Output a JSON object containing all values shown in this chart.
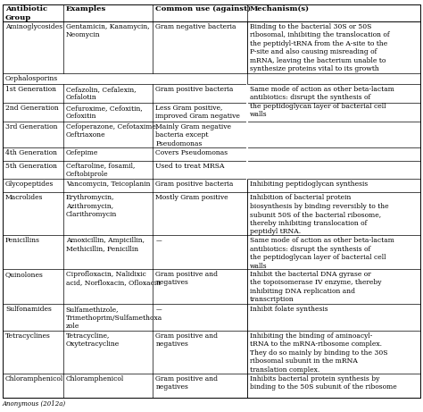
{
  "footnote": "Anonymous (2012a)",
  "col_headers": [
    "Antibiotic\nGroup",
    "Examples",
    "Common use (against)",
    "Mechanism(s)"
  ],
  "font_size": 5.5,
  "header_font_size": 6.0,
  "rows": [
    {
      "group": "Aminoglycosides",
      "examples": "Gentamicin, Kanamycin,\nNeomycin",
      "common_use": "Gram negative bacteria",
      "mechanism": "Binding to the bacterial 30S or 50S\nribosomal, inhibiting the translocation of\nthe peptidyl-tRNA from the A-site to the\nP-site and also causing misreading of\nmRNA, leaving the bacterium unable to\nsynthesize proteins vital to its growth",
      "is_subheader": false,
      "mech_span": false
    },
    {
      "group": "Cephalosporins",
      "examples": "",
      "common_use": "",
      "mechanism": "",
      "is_subheader": true,
      "mech_span": false
    },
    {
      "group": "1st Generation",
      "examples": "Cefazolin, Cefalexin,\nCefalotin",
      "common_use": "Gram positive bacteria",
      "mechanism": "",
      "is_subheader": false,
      "mech_span": true
    },
    {
      "group": "2nd Generation",
      "examples": "Cefuroxime, Cefoxitin,\nCefoxitin",
      "common_use": "Less Gram positive,\nimproved Gram negative",
      "mechanism": "Same mode of action as other beta-lactam\nantibiotics: disrupt the synthesis of\nthe peptidoglycan layer of bacterial cell\nwalls",
      "is_subheader": false,
      "mech_span": true
    },
    {
      "group": "3rd Generation",
      "examples": "Cefoperazone, Cefotaxime,\nCeftriaxone",
      "common_use": "Mainly Gram negative\nbacteria except\nPseudomonas",
      "mechanism": "",
      "is_subheader": false,
      "mech_span": true
    },
    {
      "group": "4th Generation",
      "examples": "Cefepime",
      "common_use": "Covers Pseudomonas",
      "mechanism": "",
      "is_subheader": false,
      "mech_span": true
    },
    {
      "group": "5th Generation",
      "examples": "Ceftaroline, fosamil,\nCeftobiprole",
      "common_use": "Used to treat MRSA",
      "mechanism": "",
      "is_subheader": false,
      "mech_span": true
    },
    {
      "group": "Glycopeptides",
      "examples": "Vancomycin, Teicoplanin",
      "common_use": "Gram positive bacteria",
      "mechanism": "Inhibiting peptidoglycan synthesis",
      "is_subheader": false,
      "mech_span": false
    },
    {
      "group": "Macrolides",
      "examples": "Erythromycin,\nAzithromycin,\nClarithromycin",
      "common_use": "Mostly Gram positive",
      "mechanism": "Inhibition of bacterial protein\nbiosynthesis by binding reversibly to the\nsubunit 50S of the bacterial ribosome,\nthereby inhibiting translocation of\npeptidyl tRNA.",
      "is_subheader": false,
      "mech_span": false
    },
    {
      "group": "Penicillins",
      "examples": "Amoxicillin, Ampicillin,\nMethicillin, Penicillin",
      "common_use": "––",
      "mechanism": "Same mode of action as other beta-lactam\nantibiotics: disrupt the synthesis of\nthe peptidoglycan layer of bacterial cell\nwalls",
      "is_subheader": false,
      "mech_span": false
    },
    {
      "group": "Quinolones",
      "examples": "Ciprofloxacin, Nalidixic\nacid, Norfloxacin, Ofloxacin",
      "common_use": "Gram positive and\nnegatives",
      "mechanism": "Inhibit the bacterial DNA gyrase or\nthe topoisomerase IV enzyme, thereby\ninhibiting DNA replication and\ntranscription",
      "is_subheader": false,
      "mech_span": false
    },
    {
      "group": "Sulfonamides",
      "examples": "Sulfamethizole,\nTrimethoprim/Sulfamethoxa\nzole",
      "common_use": "––",
      "mechanism": "Inhibit folate synthesis",
      "is_subheader": false,
      "mech_span": false
    },
    {
      "group": "Tetracyclines",
      "examples": "Tetracycline,\nOxytetracycline",
      "common_use": "Gram positive and\nnegatives",
      "mechanism": "Inhibiting the binding of aminoacyl-\ntRNA to the mRNA-ribosome complex.\nThey do so mainly by binding to the 30S\nribosomal subunit in the mRNA\ntranslation complex.",
      "is_subheader": false,
      "mech_span": false
    },
    {
      "group": "Chloramphenicol",
      "examples": "Chloramphenicol",
      "common_use": "Gram positive and\nnegatives",
      "mechanism": "Inhibits bacterial protein synthesis by\nbinding to the 50S subunit of the ribosome",
      "is_subheader": false,
      "mech_span": false
    }
  ]
}
